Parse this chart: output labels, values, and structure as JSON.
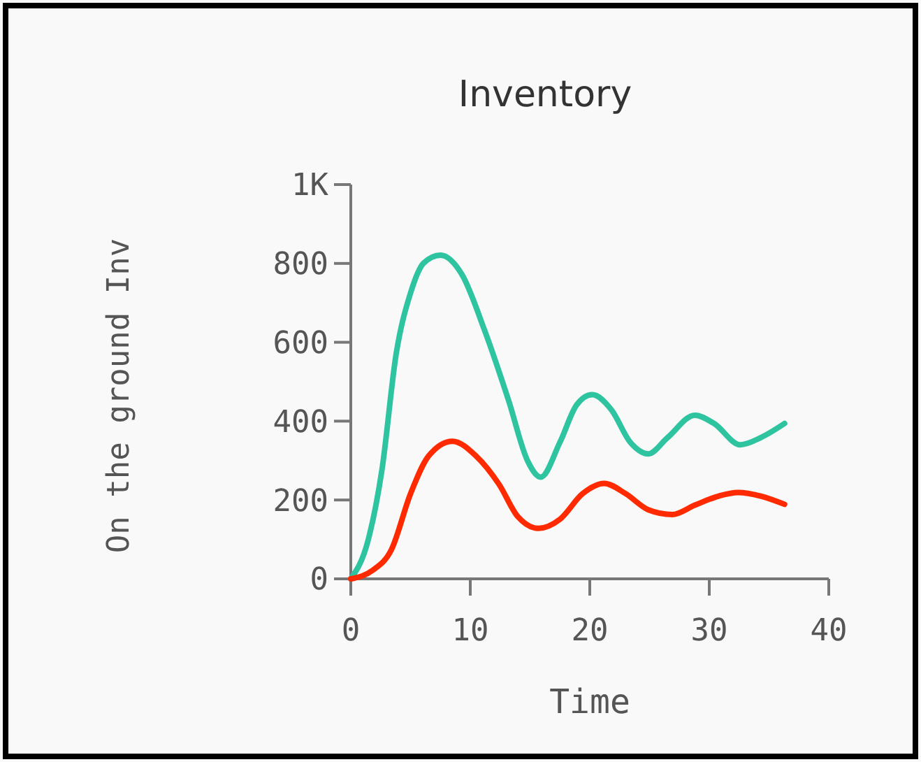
{
  "chart_data": {
    "type": "line",
    "title": "Inventory",
    "xlabel": "Time",
    "ylabel": "On the ground Inv",
    "xlim": [
      0,
      40
    ],
    "xticks": [
      0,
      10,
      20,
      30,
      40
    ],
    "ylim": [
      0,
      1000
    ],
    "yticks": [
      0,
      200,
      400,
      600,
      800,
      {
        "value": 1000,
        "label": "1K"
      }
    ],
    "grid": false,
    "marker": "none",
    "line_style": "solid",
    "series": [
      {
        "color": "#2ec4a0",
        "x": [
          0,
          1.45,
          2.6,
          3.8,
          5.0,
          6.1,
          7.5,
          9.3,
          11.2,
          13.2,
          14.8,
          15.9,
          17.5,
          18.9,
          20.2,
          21.8,
          23.4,
          24.9,
          26.5,
          28.8,
          30.4,
          32.6,
          34.3,
          36.3
        ],
        "values": [
          0,
          98,
          275,
          571,
          725,
          801,
          821,
          772,
          630,
          453,
          299,
          258,
          346,
          441,
          467,
          429,
          346,
          317,
          358,
          415,
          394,
          340,
          358,
          394
        ]
      },
      {
        "color": "#ff2a00",
        "x": [
          0,
          1.8,
          3.4,
          5.0,
          6.5,
          8.5,
          10.5,
          12.4,
          14.0,
          15.7,
          17.5,
          19.4,
          21.2,
          23.0,
          24.9,
          26.9,
          28.8,
          30.8,
          32.4,
          34.3,
          36.3
        ],
        "values": [
          0,
          21,
          74,
          216,
          311,
          349,
          311,
          240,
          157,
          128,
          151,
          216,
          242,
          216,
          175,
          163,
          187,
          210,
          219,
          210,
          189
        ]
      }
    ]
  }
}
